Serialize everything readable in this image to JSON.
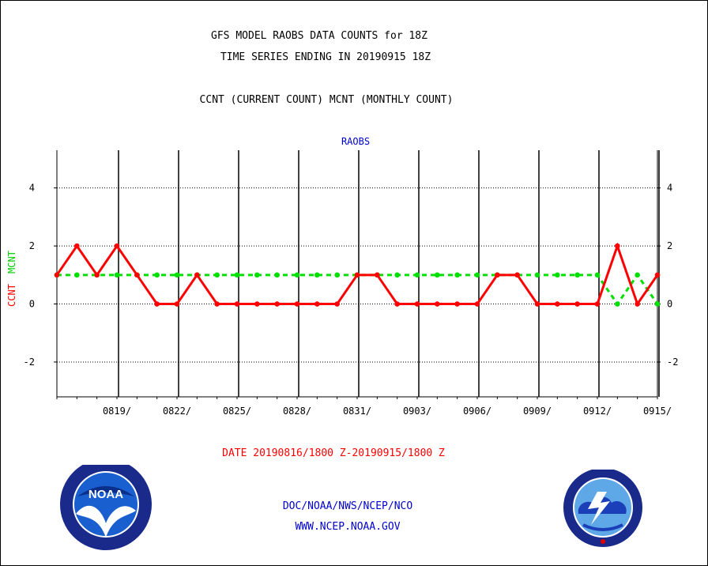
{
  "title_line1": "GFS MODEL RAOBS DATA COUNTS for 18Z",
  "title_line2": "TIME SERIES ENDING IN 20190915 18Z",
  "subtitle": "CCNT (CURRENT COUNT) MCNT (MONTHLY COUNT)",
  "panel_label": "RAOBS",
  "ylabel_ccnt": "CCNT",
  "ylabel_mcnt": "MCNT",
  "date_range": "DATE 20190816/1800 Z-20190915/1800 Z",
  "footer_org": "DOC/NOAA/NWS/NCEP/NCO",
  "footer_url": "WWW.NCEP.NOAA.GOV",
  "logo_left": "NOAA",
  "logo_left_ring": "NATIONAL OCEANIC AND ATMOSPHERIC ADMINISTRATION · U.S. DEPARTMENT OF COMMERCE",
  "logo_right_ring": "NATIONAL WEATHER SERVICE",
  "colors": {
    "ccnt": "#ff0000",
    "mcnt": "#00e000",
    "text_blue": "#0000cc",
    "axis": "#000000"
  },
  "chart_data": {
    "type": "line",
    "title": "GFS MODEL RAOBS DATA COUNTS for 18Z",
    "ylim": [
      -3.2,
      5.3
    ],
    "y_ticks": [
      -2,
      0,
      2,
      4
    ],
    "y_tick_labels": [
      "-2",
      "0",
      "2",
      "4"
    ],
    "x_tick_labels": [
      "0819/",
      "0822/",
      "0825/",
      "0828/",
      "0831/",
      "0903/",
      "0906/",
      "0909/",
      "0912/",
      "0915/"
    ],
    "x_dates": [
      "0816",
      "0817",
      "0818",
      "0819",
      "0820",
      "0821",
      "0822",
      "0823",
      "0824",
      "0825",
      "0826",
      "0827",
      "0828",
      "0829",
      "0830",
      "0831",
      "0901",
      "0902",
      "0903",
      "0904",
      "0905",
      "0906",
      "0907",
      "0908",
      "0909",
      "0910",
      "0911",
      "0912",
      "0913",
      "0914",
      "0915"
    ],
    "grid": true,
    "series": [
      {
        "name": "CCNT",
        "color": "#ff0000",
        "style": "solid",
        "values": [
          1,
          2,
          1,
          2,
          1,
          0,
          0,
          1,
          0,
          0,
          0,
          0,
          0,
          0,
          0,
          1,
          1,
          0,
          0,
          0,
          0,
          0,
          1,
          1,
          0,
          0,
          0,
          0,
          2,
          0,
          1
        ]
      },
      {
        "name": "MCNT",
        "color": "#00e000",
        "style": "dashed",
        "values": [
          1,
          1,
          1,
          1,
          1,
          1,
          1,
          1,
          1,
          1,
          1,
          1,
          1,
          1,
          1,
          1,
          1,
          1,
          1,
          1,
          1,
          1,
          1,
          1,
          1,
          1,
          1,
          1,
          0,
          1,
          0
        ]
      }
    ]
  }
}
